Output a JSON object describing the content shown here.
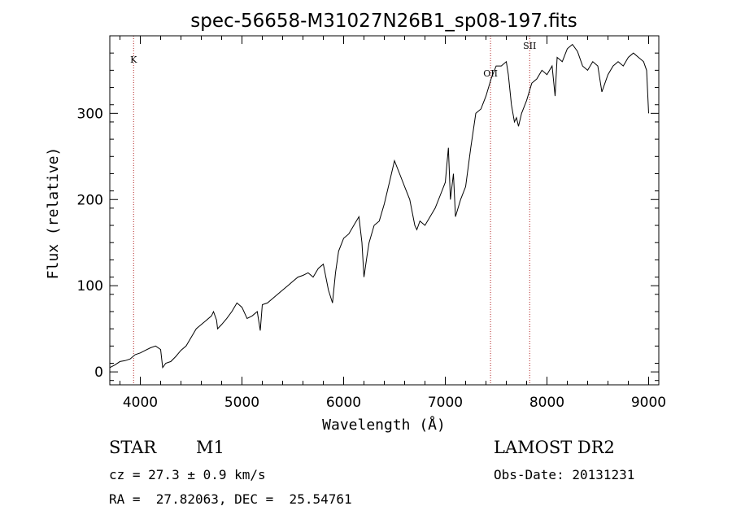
{
  "chart_data": {
    "type": "line",
    "title": "spec-56658-M31027N26B1_sp08-197.fits",
    "xlabel": "Wavelength (Å)",
    "ylabel": "Flux (relative)",
    "xlim": [
      3700,
      9100
    ],
    "ylim": [
      -15,
      390
    ],
    "xticks": [
      4000,
      5000,
      6000,
      7000,
      8000,
      9000
    ],
    "yticks": [
      0,
      100,
      200,
      300
    ],
    "line_color": "#000000",
    "marker_color": "#b22222",
    "lines": [
      {
        "label": "K",
        "x": 3934
      },
      {
        "label": "OII",
        "x": 7445
      },
      {
        "label": "SII",
        "x": 7830
      }
    ],
    "series": [
      {
        "x": [
          3700,
          3750,
          3800,
          3850,
          3900,
          3950,
          4000,
          4050,
          4100,
          4150,
          4200,
          4220,
          4250,
          4300,
          4350,
          4400,
          4450,
          4500,
          4550,
          4600,
          4650,
          4700,
          4720,
          4750,
          4760,
          4800,
          4850,
          4900,
          4950,
          5000,
          5050,
          5100,
          5150,
          5180,
          5200,
          5250,
          5300,
          5350,
          5400,
          5450,
          5500,
          5550,
          5600,
          5650,
          5700,
          5750,
          5800,
          5850,
          5890,
          5920,
          5950,
          6000,
          6050,
          6100,
          6150,
          6180,
          6200,
          6230,
          6250,
          6300,
          6350,
          6400,
          6450,
          6500,
          6550,
          6600,
          6650,
          6700,
          6720,
          6750,
          6800,
          6850,
          6900,
          6950,
          7000,
          7030,
          7050,
          7080,
          7100,
          7150,
          7200,
          7250,
          7300,
          7350,
          7400,
          7450,
          7500,
          7550,
          7600,
          7620,
          7650,
          7680,
          7700,
          7720,
          7750,
          7800,
          7850,
          7900,
          7950,
          8000,
          8050,
          8080,
          8100,
          8150,
          8200,
          8250,
          8300,
          8350,
          8400,
          8450,
          8500,
          8540,
          8600,
          8650,
          8700,
          8750,
          8800,
          8850,
          8900,
          8950,
          8980,
          9000
        ],
        "y": [
          5,
          8,
          12,
          13,
          15,
          20,
          22,
          25,
          28,
          30,
          26,
          5,
          10,
          12,
          18,
          25,
          30,
          40,
          50,
          55,
          60,
          65,
          70,
          60,
          50,
          55,
          62,
          70,
          80,
          75,
          62,
          65,
          70,
          48,
          78,
          80,
          85,
          90,
          95,
          100,
          105,
          110,
          112,
          115,
          110,
          120,
          125,
          95,
          80,
          115,
          140,
          155,
          160,
          170,
          180,
          150,
          110,
          135,
          150,
          170,
          175,
          195,
          220,
          245,
          230,
          215,
          200,
          170,
          165,
          175,
          170,
          180,
          190,
          205,
          220,
          260,
          200,
          230,
          180,
          200,
          215,
          260,
          300,
          305,
          320,
          340,
          355,
          355,
          360,
          345,
          310,
          290,
          295,
          285,
          300,
          315,
          335,
          340,
          350,
          345,
          355,
          320,
          365,
          360,
          375,
          380,
          372,
          355,
          350,
          360,
          355,
          325,
          345,
          355,
          360,
          355,
          365,
          370,
          365,
          360,
          350,
          300
        ]
      }
    ]
  },
  "info": {
    "objtype": "STAR",
    "subclass": "M1",
    "cz": "cz = 27.3 ± 0.9 km/s",
    "coords": "RA =  27.82063, DEC =  25.54761",
    "survey": "LAMOST DR2",
    "obsdate": "Obs-Date: 20131231"
  }
}
